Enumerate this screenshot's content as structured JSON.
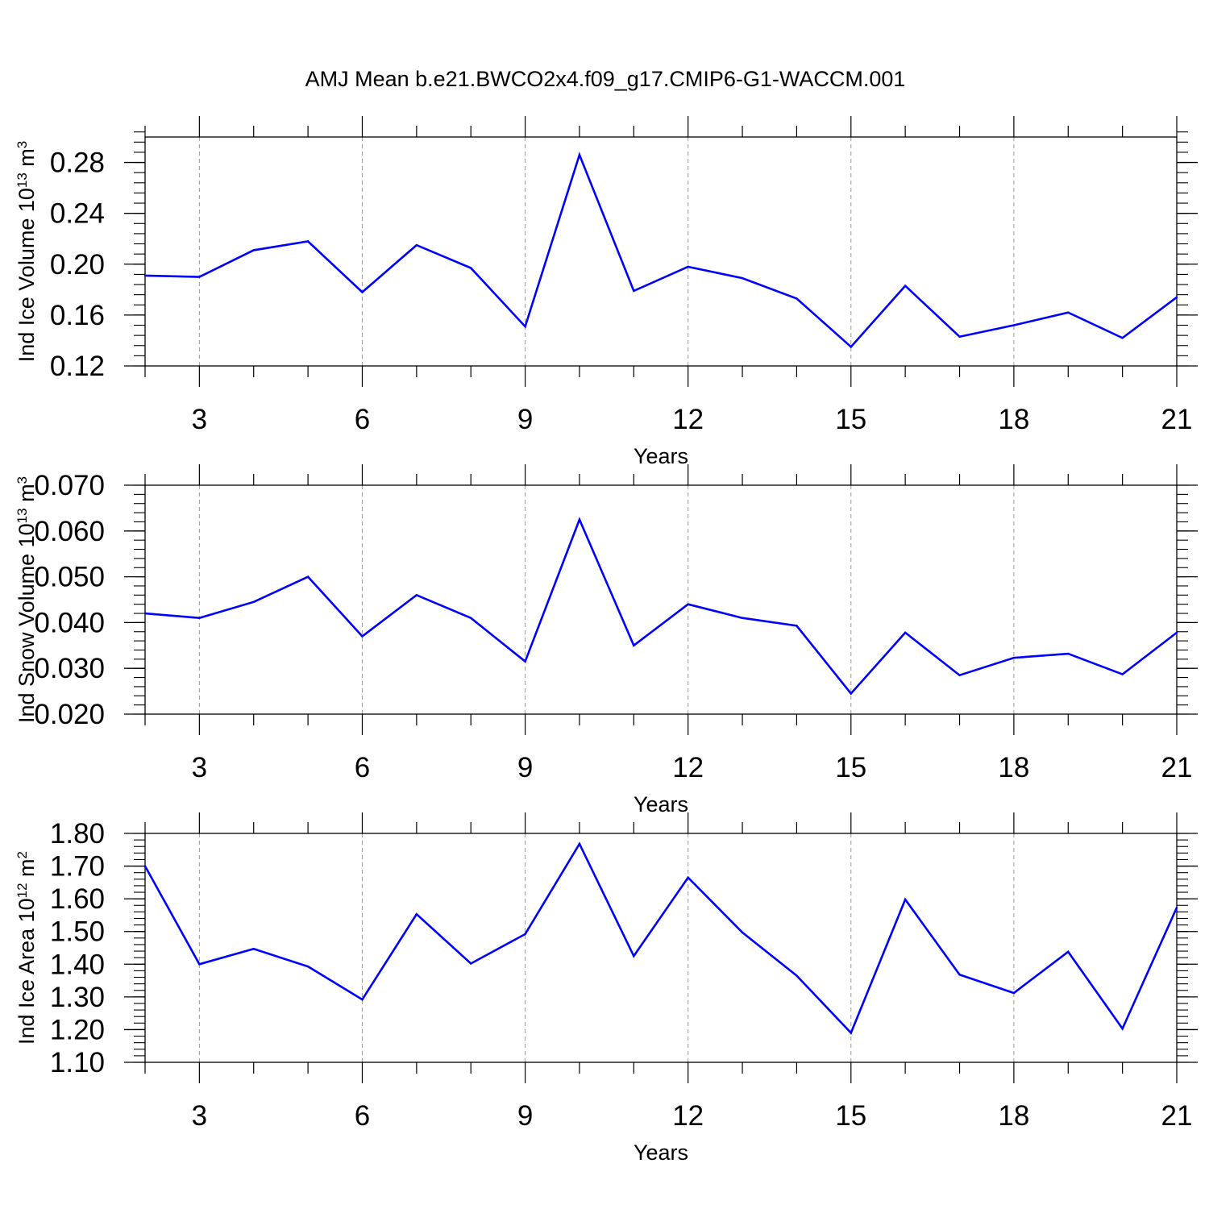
{
  "figure": {
    "title": "AMJ Mean b.e21.BWCO2x4.f09_g17.CMIP6-G1-WACCM.001"
  },
  "colors": {
    "line": "#0000ff",
    "axis": "#000000",
    "grid": "#999999"
  },
  "chart_data": [
    {
      "type": "line",
      "ylabel": {
        "base": "Ind Ice Volume 10",
        "exp": "13",
        "unit": " m",
        "unit_exp": "3"
      },
      "xlabel": "Years",
      "xlim": [
        2,
        21
      ],
      "ylim": [
        0.12,
        0.3
      ],
      "grid": "vertical dashed at major x ticks",
      "x_ticks": [
        3,
        6,
        9,
        12,
        15,
        18,
        21
      ],
      "y_ticks": [
        0.12,
        0.16,
        0.2,
        0.24,
        0.28
      ],
      "y_tick_labels": [
        "0.12",
        "0.16",
        "0.20",
        "0.24",
        "0.28"
      ],
      "y_minor_step": 0.008,
      "x": [
        2,
        3,
        4,
        5,
        6,
        7,
        8,
        9,
        10,
        11,
        12,
        13,
        14,
        15,
        16,
        17,
        18,
        19,
        20,
        21
      ],
      "series": [
        {
          "values": [
            0.191,
            0.19,
            0.211,
            0.218,
            0.178,
            0.215,
            0.197,
            0.151,
            0.286,
            0.179,
            0.198,
            0.189,
            0.173,
            0.135,
            0.183,
            0.143,
            0.152,
            0.162,
            0.142,
            0.174
          ]
        }
      ]
    },
    {
      "type": "line",
      "ylabel": {
        "base": "Ind Snow Volume 10",
        "exp": "13",
        "unit": " m",
        "unit_exp": "3"
      },
      "xlabel": "Years",
      "xlim": [
        2,
        21
      ],
      "ylim": [
        0.02,
        0.07
      ],
      "grid": "vertical dashed at major x ticks",
      "x_ticks": [
        3,
        6,
        9,
        12,
        15,
        18,
        21
      ],
      "y_ticks": [
        0.02,
        0.03,
        0.04,
        0.05,
        0.06,
        0.07
      ],
      "y_tick_labels": [
        "0.020",
        "0.030",
        "0.040",
        "0.050",
        "0.060",
        "0.070"
      ],
      "y_minor_step": 0.002,
      "x": [
        2,
        3,
        4,
        5,
        6,
        7,
        8,
        9,
        10,
        11,
        12,
        13,
        14,
        15,
        16,
        17,
        18,
        19,
        20,
        21
      ],
      "series": [
        {
          "values": [
            0.042,
            0.041,
            0.0445,
            0.05,
            0.037,
            0.046,
            0.041,
            0.0315,
            0.0625,
            0.035,
            0.044,
            0.041,
            0.0393,
            0.0245,
            0.0378,
            0.0285,
            0.0323,
            0.0332,
            0.0287,
            0.0378
          ]
        }
      ]
    },
    {
      "type": "line",
      "ylabel": {
        "base": "Ind Ice Area 10",
        "exp": "12",
        "unit": " m",
        "unit_exp": "2"
      },
      "xlabel": "Years",
      "xlim": [
        2,
        21
      ],
      "ylim": [
        1.1,
        1.8
      ],
      "grid": "vertical dashed at major x ticks",
      "x_ticks": [
        3,
        6,
        9,
        12,
        15,
        18,
        21
      ],
      "y_ticks": [
        1.1,
        1.2,
        1.3,
        1.4,
        1.5,
        1.6,
        1.7,
        1.8
      ],
      "y_tick_labels": [
        "1.10",
        "1.20",
        "1.30",
        "1.40",
        "1.50",
        "1.60",
        "1.70",
        "1.80"
      ],
      "y_minor_step": 0.02,
      "x": [
        2,
        3,
        4,
        5,
        6,
        7,
        8,
        9,
        10,
        11,
        12,
        13,
        14,
        15,
        16,
        17,
        18,
        19,
        20,
        21
      ],
      "series": [
        {
          "values": [
            1.7,
            1.4,
            1.447,
            1.393,
            1.292,
            1.553,
            1.402,
            1.492,
            1.768,
            1.425,
            1.665,
            1.497,
            1.365,
            1.19,
            1.598,
            1.368,
            1.312,
            1.438,
            1.203,
            1.573
          ]
        }
      ]
    }
  ]
}
